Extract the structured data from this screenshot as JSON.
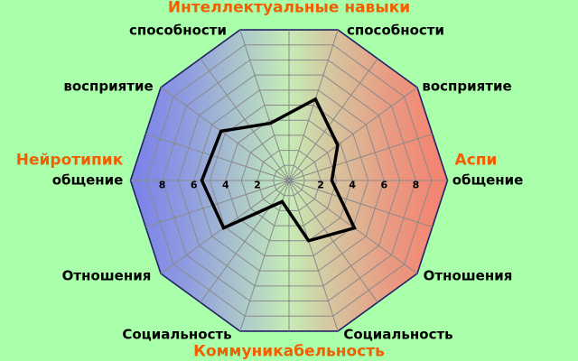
{
  "labels": {
    "top_title": "Интеллектуальные навыки",
    "abilities_left": "способности",
    "abilities_right": "способности",
    "perception_left": "восприятие",
    "perception_right": "восприятие",
    "neurotypic": "Нейротипик",
    "aspie": "Аспи",
    "communication_left": "общение",
    "communication_right": "общение",
    "relations_left": "Отношения",
    "relations_right": "Отношения",
    "sociality_left": "Социальность",
    "sociality_right": "Социальность",
    "bottom_title": "Коммуникабельность"
  },
  "chart_data": {
    "type": "radar",
    "title": "Интеллектуальные навыки",
    "bottom_title": "Коммуникабельность",
    "left_group": "Нейротипик",
    "right_group": "Аспи",
    "max": 10,
    "rings": 10,
    "spokes_every_deg": 18,
    "tick_labels": [
      2,
      4,
      6,
      8
    ],
    "axes": [
      {
        "name": "общение (Аспи)",
        "angle_deg": 0,
        "value": 2.7
      },
      {
        "name": "восприятие (Аспи)",
        "angle_deg": 36,
        "value": 3.8
      },
      {
        "name": "способности (Аспи)",
        "angle_deg": 72,
        "value": 5.4
      },
      {
        "name": "способности (Нейротипик)",
        "angle_deg": 108,
        "value": 3.8
      },
      {
        "name": "восприятие (Нейротипик)",
        "angle_deg": 144,
        "value": 5.3
      },
      {
        "name": "общение (Нейротипик)",
        "angle_deg": 180,
        "value": 5.5
      },
      {
        "name": "Отношения (Нейротипик)",
        "angle_deg": 216,
        "value": 5.1
      },
      {
        "name": "Социальность (Нейротипик)",
        "angle_deg": 252,
        "value": 1.4
      },
      {
        "name": "Социальность (Аспи)",
        "angle_deg": 288,
        "value": 4.0
      },
      {
        "name": "Отношения (Аспи)",
        "angle_deg": 324,
        "value": 5.1
      }
    ],
    "colors": {
      "background": "#aaffaa",
      "grid": "#8a8a8a",
      "border": "#222266",
      "data_line": "#000000",
      "tick_text": "#000000",
      "label_text": "#000000",
      "accent_text": "#f25e00",
      "gradient": [
        {
          "offset": 0.0,
          "color": "#7a80e8"
        },
        {
          "offset": 0.18,
          "color": "#8f9ce0"
        },
        {
          "offset": 0.38,
          "color": "#b2cfc6"
        },
        {
          "offset": 0.5,
          "color": "#c6ecb6"
        },
        {
          "offset": 0.62,
          "color": "#d4c9a2"
        },
        {
          "offset": 0.82,
          "color": "#ea9a82"
        },
        {
          "offset": 1.0,
          "color": "#f5806e"
        }
      ]
    }
  }
}
